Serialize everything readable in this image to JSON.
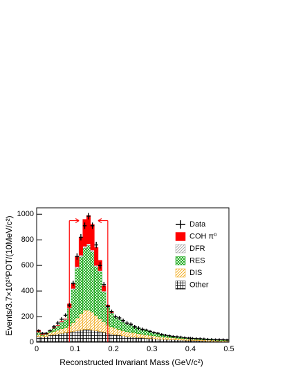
{
  "chart_data": {
    "type": "stacked_histogram",
    "x_label": "Reconstructed Invariant Mass (GeV/c²)",
    "y_label": "Events/3.7×10²⁰POT/(10MeV/c²)",
    "bins": [
      0,
      0.01,
      0.02,
      0.03,
      0.04,
      0.05,
      0.06,
      0.07,
      0.08,
      0.09,
      0.1,
      0.11,
      0.12,
      0.13,
      0.14,
      0.15,
      0.16,
      0.17,
      0.18,
      0.19,
      0.2,
      0.21,
      0.22,
      0.23,
      0.24,
      0.25,
      0.26,
      0.27,
      0.28,
      0.29,
      0.3,
      0.31,
      0.32,
      0.33,
      0.34,
      0.35,
      0.36,
      0.37,
      0.38,
      0.39,
      0.4,
      0.41,
      0.42,
      0.43,
      0.44,
      0.45,
      0.46,
      0.47,
      0.48,
      0.49,
      0.5
    ],
    "xlim": [
      0,
      0.5
    ],
    "xticks": [
      0,
      0.1,
      0.2,
      0.3,
      0.4,
      0.5
    ],
    "ylim": [
      0,
      1050
    ],
    "yticks": [
      0,
      200,
      400,
      600,
      800,
      1000
    ],
    "series": [
      {
        "name": "Other",
        "color": "#000000",
        "hatch": "grid",
        "values": [
          45,
          40,
          45,
          55,
          60,
          65,
          70,
          75,
          80,
          85,
          90,
          95,
          100,
          100,
          95,
          90,
          85,
          80,
          70,
          65,
          60,
          55,
          50,
          45,
          42,
          40,
          37,
          35,
          32,
          30,
          28,
          26,
          24,
          22,
          21,
          20,
          18,
          17,
          16,
          15,
          14,
          13,
          12,
          11,
          10,
          10,
          9,
          9,
          8,
          8
        ]
      },
      {
        "name": "DIS",
        "color": "#f0a000",
        "hatch": "diag",
        "values": [
          15,
          12,
          15,
          20,
          25,
          30,
          35,
          40,
          50,
          70,
          100,
          130,
          150,
          150,
          140,
          120,
          100,
          80,
          65,
          55,
          50,
          45,
          40,
          38,
          35,
          33,
          30,
          28,
          26,
          24,
          22,
          20,
          18,
          17,
          16,
          15,
          14,
          13,
          12,
          11,
          10,
          9,
          9,
          8,
          8,
          7,
          7,
          6,
          6,
          6
        ]
      },
      {
        "name": "RES",
        "color": "#00a000",
        "hatch": "cross",
        "values": [
          18,
          6,
          3,
          12,
          22,
          31,
          50,
          60,
          132,
          255,
          388,
          441,
          485,
          505,
          471,
          378,
          365,
          232,
          139,
          105,
          86,
          76,
          67,
          59,
          55,
          50,
          46,
          40,
          35,
          32,
          28,
          24,
          21,
          17,
          13,
          11,
          11,
          9,
          8,
          7,
          6,
          6,
          5,
          5,
          5,
          5,
          5,
          5,
          5,
          5
        ]
      },
      {
        "name": "DFR",
        "color": "#999999",
        "hatch": "diag",
        "values": [
          2,
          2,
          2,
          3,
          3,
          4,
          5,
          5,
          8,
          10,
          12,
          14,
          15,
          15,
          14,
          12,
          10,
          8,
          6,
          5,
          4,
          4,
          3,
          3,
          3,
          2,
          2,
          2,
          2,
          2,
          2,
          2,
          2,
          2,
          2,
          2,
          1,
          1,
          1,
          1,
          1,
          1,
          1,
          1,
          1,
          1,
          1,
          1,
          1,
          1
        ]
      },
      {
        "name": "COH π⁰",
        "color": "#ff0000",
        "hatch": "solid",
        "values": [
          15,
          5,
          3,
          3,
          3,
          3,
          3,
          3,
          30,
          40,
          80,
          140,
          210,
          220,
          200,
          140,
          80,
          40,
          10,
          5,
          0,
          0,
          0,
          0,
          0,
          0,
          0,
          0,
          0,
          0,
          0,
          0,
          0,
          0,
          0,
          0,
          0,
          0,
          0,
          0,
          0,
          0,
          0,
          0,
          0,
          0,
          0,
          0,
          0,
          0
        ]
      }
    ],
    "data": {
      "name": "Data",
      "color": "#000000",
      "values": [
        90,
        70,
        70,
        90,
        120,
        150,
        180,
        210,
        290,
        460,
        670,
        820,
        910,
        985,
        910,
        760,
        600,
        450,
        280,
        240,
        200,
        190,
        170,
        150,
        140,
        120,
        110,
        100,
        95,
        85,
        75,
        70,
        60,
        55,
        50,
        45,
        42,
        40,
        35,
        32,
        30,
        28,
        27,
        25,
        23,
        22,
        20,
        20,
        20,
        18
      ],
      "errors": [
        10,
        10,
        10,
        10,
        15,
        15,
        15,
        15,
        15,
        20,
        25,
        25,
        25,
        25,
        25,
        25,
        25,
        20,
        15,
        15,
        15,
        15,
        15,
        15,
        15,
        15,
        15,
        15,
        10,
        10,
        10,
        10,
        10,
        10,
        10,
        10,
        10,
        10,
        10,
        10,
        10,
        10,
        10,
        10,
        10,
        10,
        10,
        10,
        10,
        10
      ]
    },
    "cuts": [
      0.085,
      0.185
    ],
    "cut_height": 950,
    "cut_color": "#ff0000"
  }
}
